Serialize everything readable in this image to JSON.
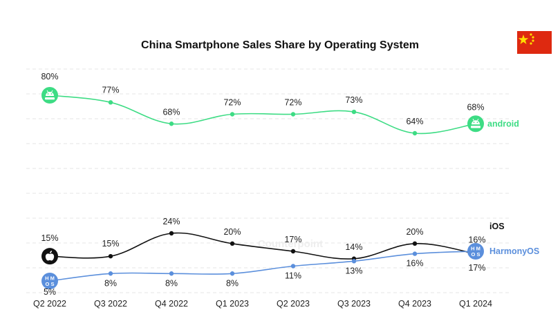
{
  "colors": {
    "android": "#3ddc84",
    "ios": "#111111",
    "harmony": "#5b8fdc",
    "flag_red": "#de2910",
    "flag_star": "#ffde00"
  },
  "icons": {
    "android": "android-icon",
    "ios": "apple-icon",
    "harmony": "harmonyos-icon",
    "flag": "china-flag-icon"
  },
  "chart_data": {
    "type": "line",
    "title": "China Smartphone Sales Share by Operating System",
    "categories": [
      "Q2 2022",
      "Q3 2022",
      "Q4 2022",
      "Q1 2023",
      "Q2 2023",
      "Q3 2023",
      "Q4 2023",
      "Q1 2024"
    ],
    "series": [
      {
        "name": "android",
        "values": [
          80,
          77,
          68,
          72,
          72,
          73,
          64,
          68
        ],
        "labels": [
          "80%",
          "77%",
          "68%",
          "72%",
          "72%",
          "73%",
          "64%",
          "68%"
        ]
      },
      {
        "name": "iOS",
        "values": [
          15,
          15,
          24,
          20,
          17,
          14,
          20,
          16
        ],
        "labels": [
          "15%",
          "15%",
          "24%",
          "20%",
          "17%",
          "14%",
          "20%",
          "16%"
        ]
      },
      {
        "name": "HarmonyOS",
        "values": [
          5,
          8,
          8,
          8,
          11,
          13,
          16,
          17
        ],
        "labels": [
          "5%",
          "8%",
          "8%",
          "8%",
          "11%",
          "13%",
          "16%",
          "17%"
        ]
      }
    ],
    "xlabel": "",
    "ylabel": "",
    "ylim": [
      0,
      85
    ],
    "grid": true,
    "legend": "inline-right"
  }
}
